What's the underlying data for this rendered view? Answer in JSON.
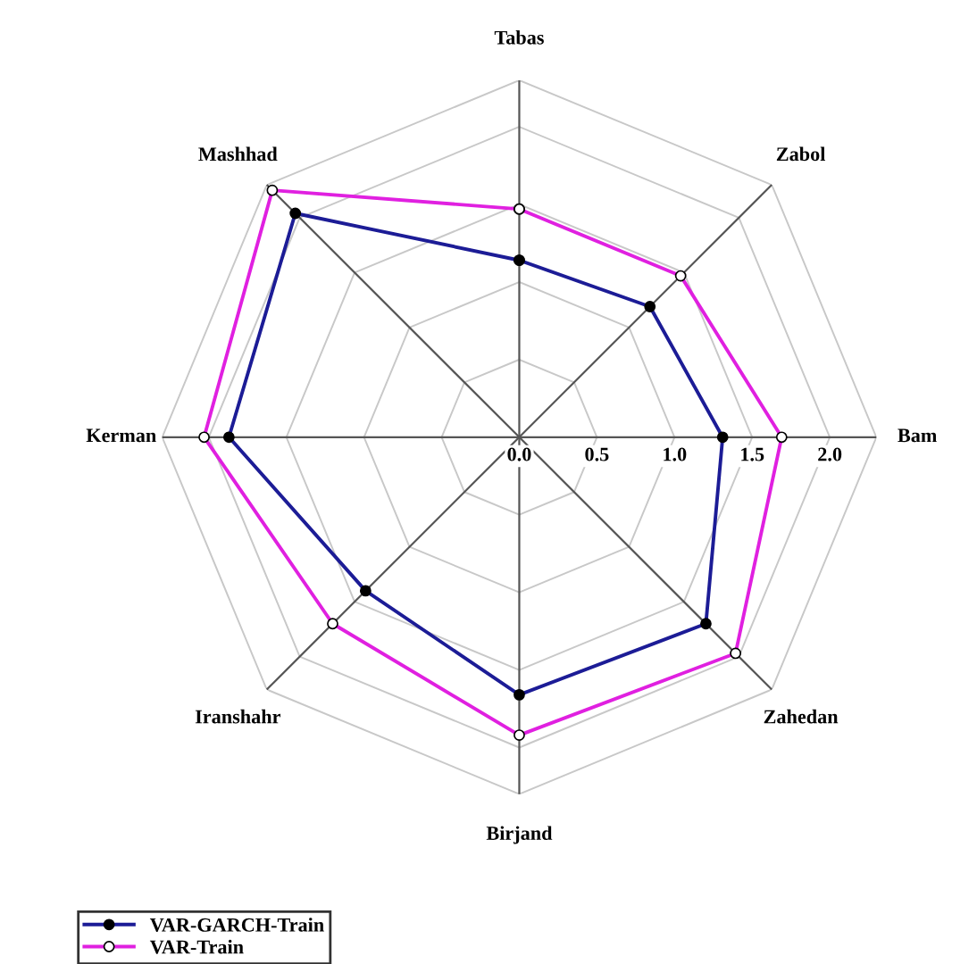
{
  "chart_data": {
    "type": "radar",
    "categories": [
      "Tabas",
      "Zabol",
      "Bam",
      "Zahedan",
      "Birjand",
      "Iranshahr",
      "Kerman",
      "Mashhad"
    ],
    "ylim": [
      0,
      2.3
    ],
    "yticks": [
      {
        "value": 0,
        "label": "0.0"
      },
      {
        "value": 0.5,
        "label": "0.5"
      },
      {
        "value": 1.0,
        "label": "1.0"
      },
      {
        "value": 1.5,
        "label": "1.5"
      },
      {
        "value": 2.0,
        "label": "2.0"
      }
    ],
    "grid": true,
    "legend": "bottom left",
    "series": [
      {
        "name": "VAR-GARCH-Train",
        "color": "#1c1c96",
        "marker": "circle",
        "values": [
          1.14,
          1.19,
          1.31,
          1.7,
          1.66,
          1.4,
          1.87,
          2.04
        ]
      },
      {
        "name": "VAR-Train",
        "color": "#e020e0",
        "marker": "circle",
        "values": [
          1.47,
          1.47,
          1.69,
          1.97,
          1.92,
          1.7,
          2.03,
          2.25
        ]
      }
    ]
  }
}
